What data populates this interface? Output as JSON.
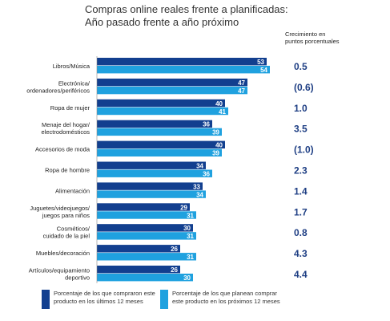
{
  "title": {
    "line1": "Compras online reales frente a planificadas:",
    "line2": "Año pasado frente a año próximo"
  },
  "growth_header": "Crecimiento en puntos porcentuales",
  "colors": {
    "dark": "#123f8f",
    "light": "#1fa1df",
    "growth": "#1f3f84"
  },
  "legend": {
    "dark_label": "Porcentaje de los que compraron este producto en los últimos 12 meses",
    "light_label": "Porcentaje de los que planean comprar este producto en los próximos 12 meses"
  },
  "chart_data": {
    "type": "bar",
    "orientation": "horizontal",
    "categories": [
      [
        "Libros/Música"
      ],
      [
        "Electrónica/",
        "ordenadores/periféricos"
      ],
      [
        "Ropa de mujer"
      ],
      [
        "Menaje del hogar/",
        "electrodomésticos"
      ],
      [
        "Accesorios de moda"
      ],
      [
        "Ropa de hombre"
      ],
      [
        "Alimentación"
      ],
      [
        "Juguetes/videojuegos/",
        "juegos para niños"
      ],
      [
        "Cosméticos/",
        "cuidado de la piel"
      ],
      [
        "Muebles/decoración"
      ],
      [
        "Artículos/equipamiento",
        "deportivo"
      ]
    ],
    "series": [
      {
        "name": "Porcentaje de los que compraron este producto en los últimos 12 meses",
        "values": [
          53,
          47,
          40,
          36,
          40,
          34,
          33,
          29,
          30,
          26,
          26
        ]
      },
      {
        "name": "Porcentaje de los que planean comprar este producto en los próximos 12 meses",
        "values": [
          54,
          47,
          41,
          39,
          39,
          36,
          34,
          31,
          31,
          31,
          30
        ]
      }
    ],
    "growth": [
      "0.5",
      "(0.6)",
      "1.0",
      "3.5",
      "(1.0)",
      "2.3",
      "1.4",
      "1.7",
      "0.8",
      "4.3",
      "4.4"
    ],
    "xlim": [
      0,
      54
    ]
  }
}
